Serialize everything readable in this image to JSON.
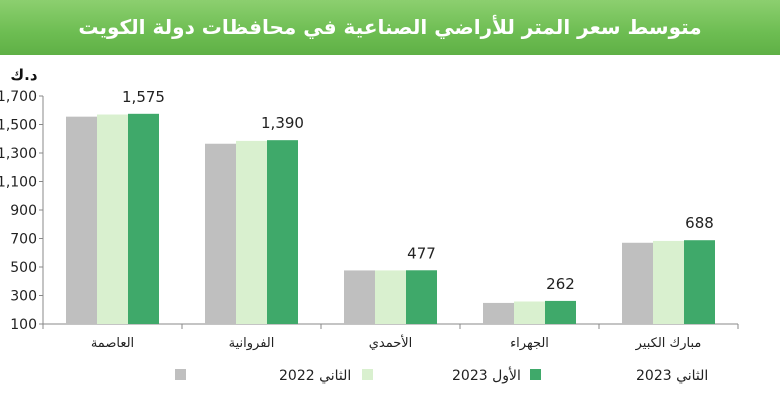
{
  "chart_data": {
    "type": "bar",
    "title": "متوسط سعر المتر  للأراضي الصناعية في محافظات دولة الكويت",
    "ylabel": "د.ك",
    "xlabel": "",
    "ylim": [
      100,
      1700
    ],
    "yticks": [
      "100",
      "300",
      "500",
      "700",
      "900",
      "1,100",
      "1,300",
      "1,500",
      "1,700"
    ],
    "ytick_values": [
      100,
      300,
      500,
      700,
      900,
      1100,
      1300,
      1500,
      1700
    ],
    "categories": [
      "العاصمة",
      "الفروانية",
      "الأحمدي",
      "الجهراء",
      "مبارك الكبير"
    ],
    "series": [
      {
        "name": "الثاني 2022",
        "color": "#bfbfbf",
        "values": [
          1555,
          1365,
          476,
          248,
          670
        ]
      },
      {
        "name": "الأول 2023",
        "color": "#d9f0cf",
        "values": [
          1570,
          1385,
          476,
          258,
          683
        ]
      },
      {
        "name": "الثاني 2023",
        "color": "#3fa96a",
        "values": [
          1575,
          1390,
          477,
          262,
          688
        ]
      }
    ],
    "data_labels": [
      "1,575",
      "1,390",
      "477",
      "262",
      "688"
    ],
    "legend_position": "bottom"
  }
}
